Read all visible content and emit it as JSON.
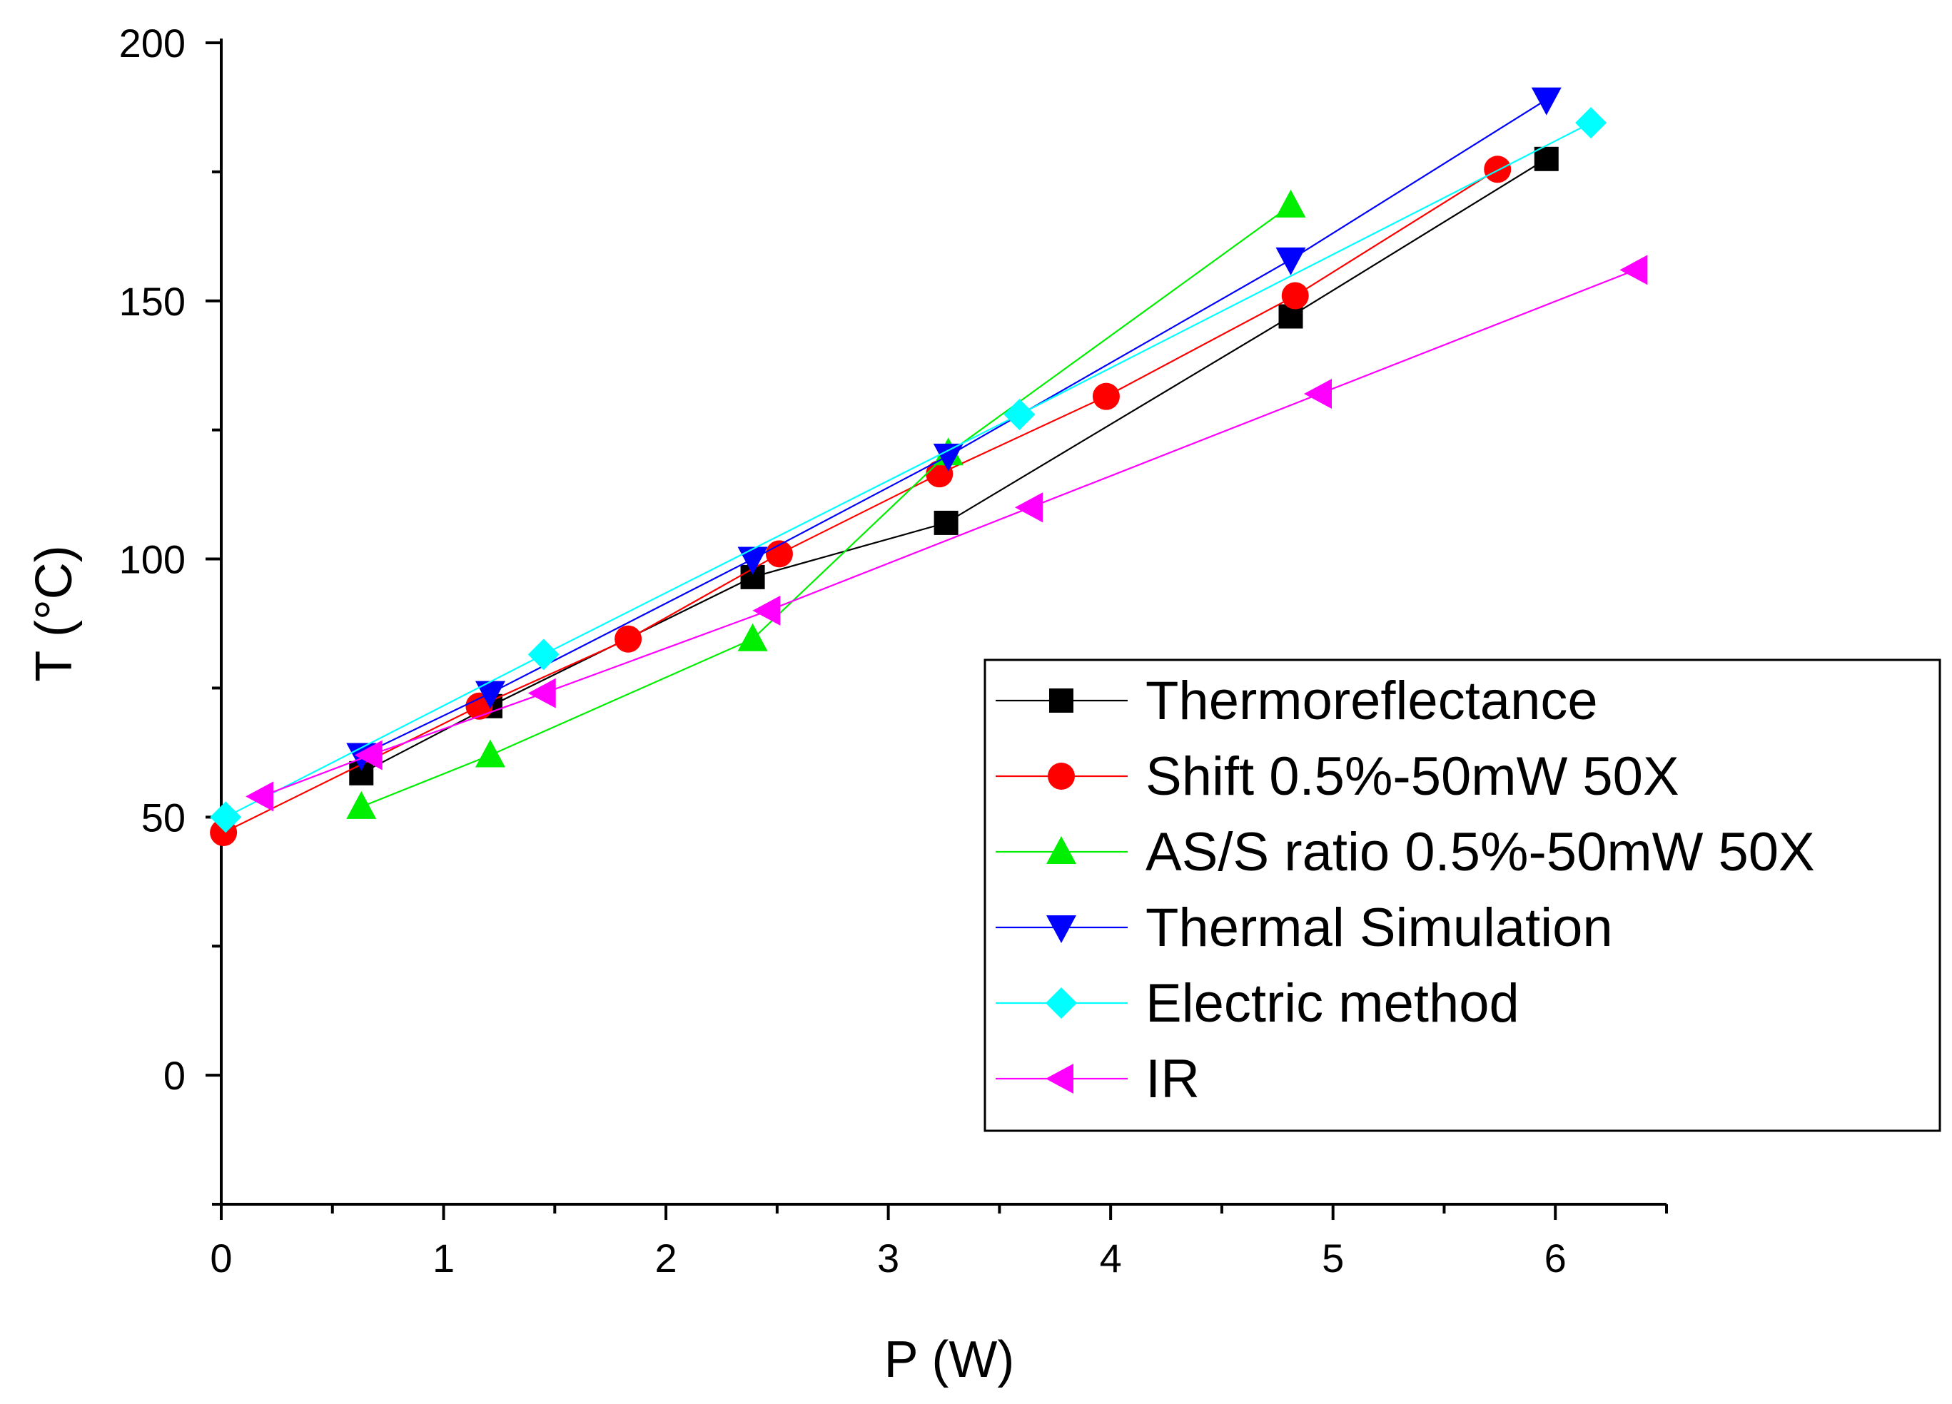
{
  "chart_data": {
    "type": "line",
    "title": "",
    "xlabel": "P (W)",
    "ylabel": "T (°C)",
    "xlim": [
      0,
      6.5
    ],
    "ylim": [
      -25,
      200
    ],
    "xticks": [
      0,
      1,
      2,
      3,
      4,
      5,
      6
    ],
    "yticks": [
      0,
      50,
      100,
      150,
      200
    ],
    "grid": false,
    "legend_position": "right",
    "series": [
      {
        "name": "Thermoreflectance",
        "color": "#000000",
        "marker": "square",
        "x": [
          0.63,
          1.21,
          2.39,
          3.26,
          4.81,
          5.96
        ],
        "y": [
          58.5,
          71.5,
          96.5,
          107,
          147,
          177.5
        ]
      },
      {
        "name": "Shift 0.5%-50mW 50X",
        "color": "#ff0000",
        "marker": "circle",
        "x": [
          0.01,
          1.16,
          1.83,
          2.51,
          3.23,
          3.98,
          4.83,
          5.74
        ],
        "y": [
          47,
          71.5,
          84.5,
          101,
          116.5,
          131.5,
          151,
          175.5
        ]
      },
      {
        "name": "AS/S ratio 0.5%-50mW 50X",
        "color": "#00ee00",
        "marker": "triangle-up",
        "x": [
          0.63,
          1.21,
          2.39,
          3.27,
          4.81
        ],
        "y": [
          52,
          62,
          84.5,
          120.5,
          168.5
        ]
      },
      {
        "name": "Thermal Simulation",
        "color": "#0000ff",
        "marker": "triangle-down",
        "x": [
          0.63,
          1.21,
          2.39,
          3.27,
          4.81,
          5.96
        ],
        "y": [
          62,
          74,
          100,
          120,
          158,
          189
        ]
      },
      {
        "name": "Electric method",
        "color": "#00ffff",
        "marker": "diamond",
        "x": [
          0.02,
          1.45,
          3.59,
          6.16
        ],
        "y": [
          50,
          81.5,
          128,
          184.5
        ]
      },
      {
        "name": "IR",
        "color": "#ff00ff",
        "marker": "triangle-left",
        "x": [
          0.18,
          0.67,
          1.45,
          2.46,
          3.64,
          4.94,
          6.36
        ],
        "y": [
          54,
          62,
          74,
          90,
          110,
          132,
          156
        ]
      }
    ]
  }
}
